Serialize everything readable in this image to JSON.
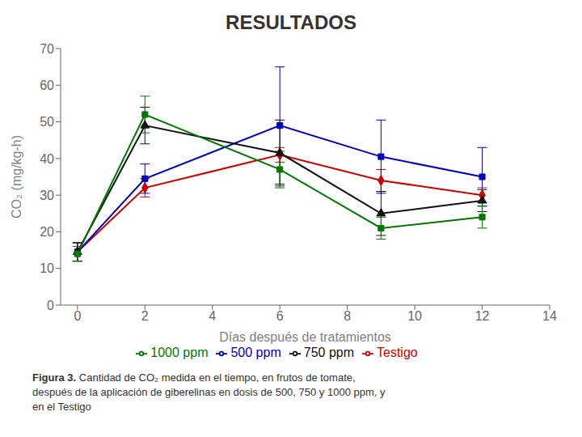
{
  "chart_data": {
    "type": "line",
    "title": "RESULTADOS",
    "x_label": "Días después de tratamientos",
    "y_label": "CO₂ (mg/kg-h)",
    "annotations": [
      "Figura 3.",
      "Cantidad de CO₂ medida en el tiempo, en frutos de tomate,",
      "después de la aplicación de giberelinas en dosis de 500, 750 y 1000 ppm, y",
      "en el Testigo"
    ],
    "x": [
      0,
      2,
      6,
      9,
      12
    ],
    "xlim": [
      -0.5,
      14
    ],
    "xticks": [
      0,
      2,
      4,
      6,
      8,
      10,
      12,
      14
    ],
    "ylim": [
      0,
      70
    ],
    "yticks": [
      0,
      10,
      20,
      30,
      40,
      50,
      60,
      70
    ],
    "grid": false,
    "series": [
      {
        "name": "Testigo",
        "color": "#cc0000",
        "marker": "diamond",
        "values": [
          14.5,
          32,
          41,
          34,
          30
        ],
        "yerr": [
          2.5,
          2.5,
          2,
          3,
          2
        ]
      },
      {
        "name": "500 ppm",
        "color": "#0000bb",
        "marker": "square",
        "values": [
          14.5,
          34.5,
          49,
          40.5,
          35
        ],
        "yerr": [
          2.5,
          4,
          16,
          10,
          8
        ]
      },
      {
        "name": "750 ppm",
        "color": "#111111",
        "marker": "triangle",
        "values": [
          14.5,
          49,
          41.5,
          25,
          28.5
        ],
        "yerr": [
          2.5,
          5,
          9,
          6,
          3
        ]
      },
      {
        "name": "1000 ppm",
        "color": "#007700",
        "marker": "square",
        "values": [
          14,
          52,
          37,
          21,
          24
        ],
        "yerr": [
          2,
          5,
          5,
          3,
          3
        ]
      }
    ]
  }
}
